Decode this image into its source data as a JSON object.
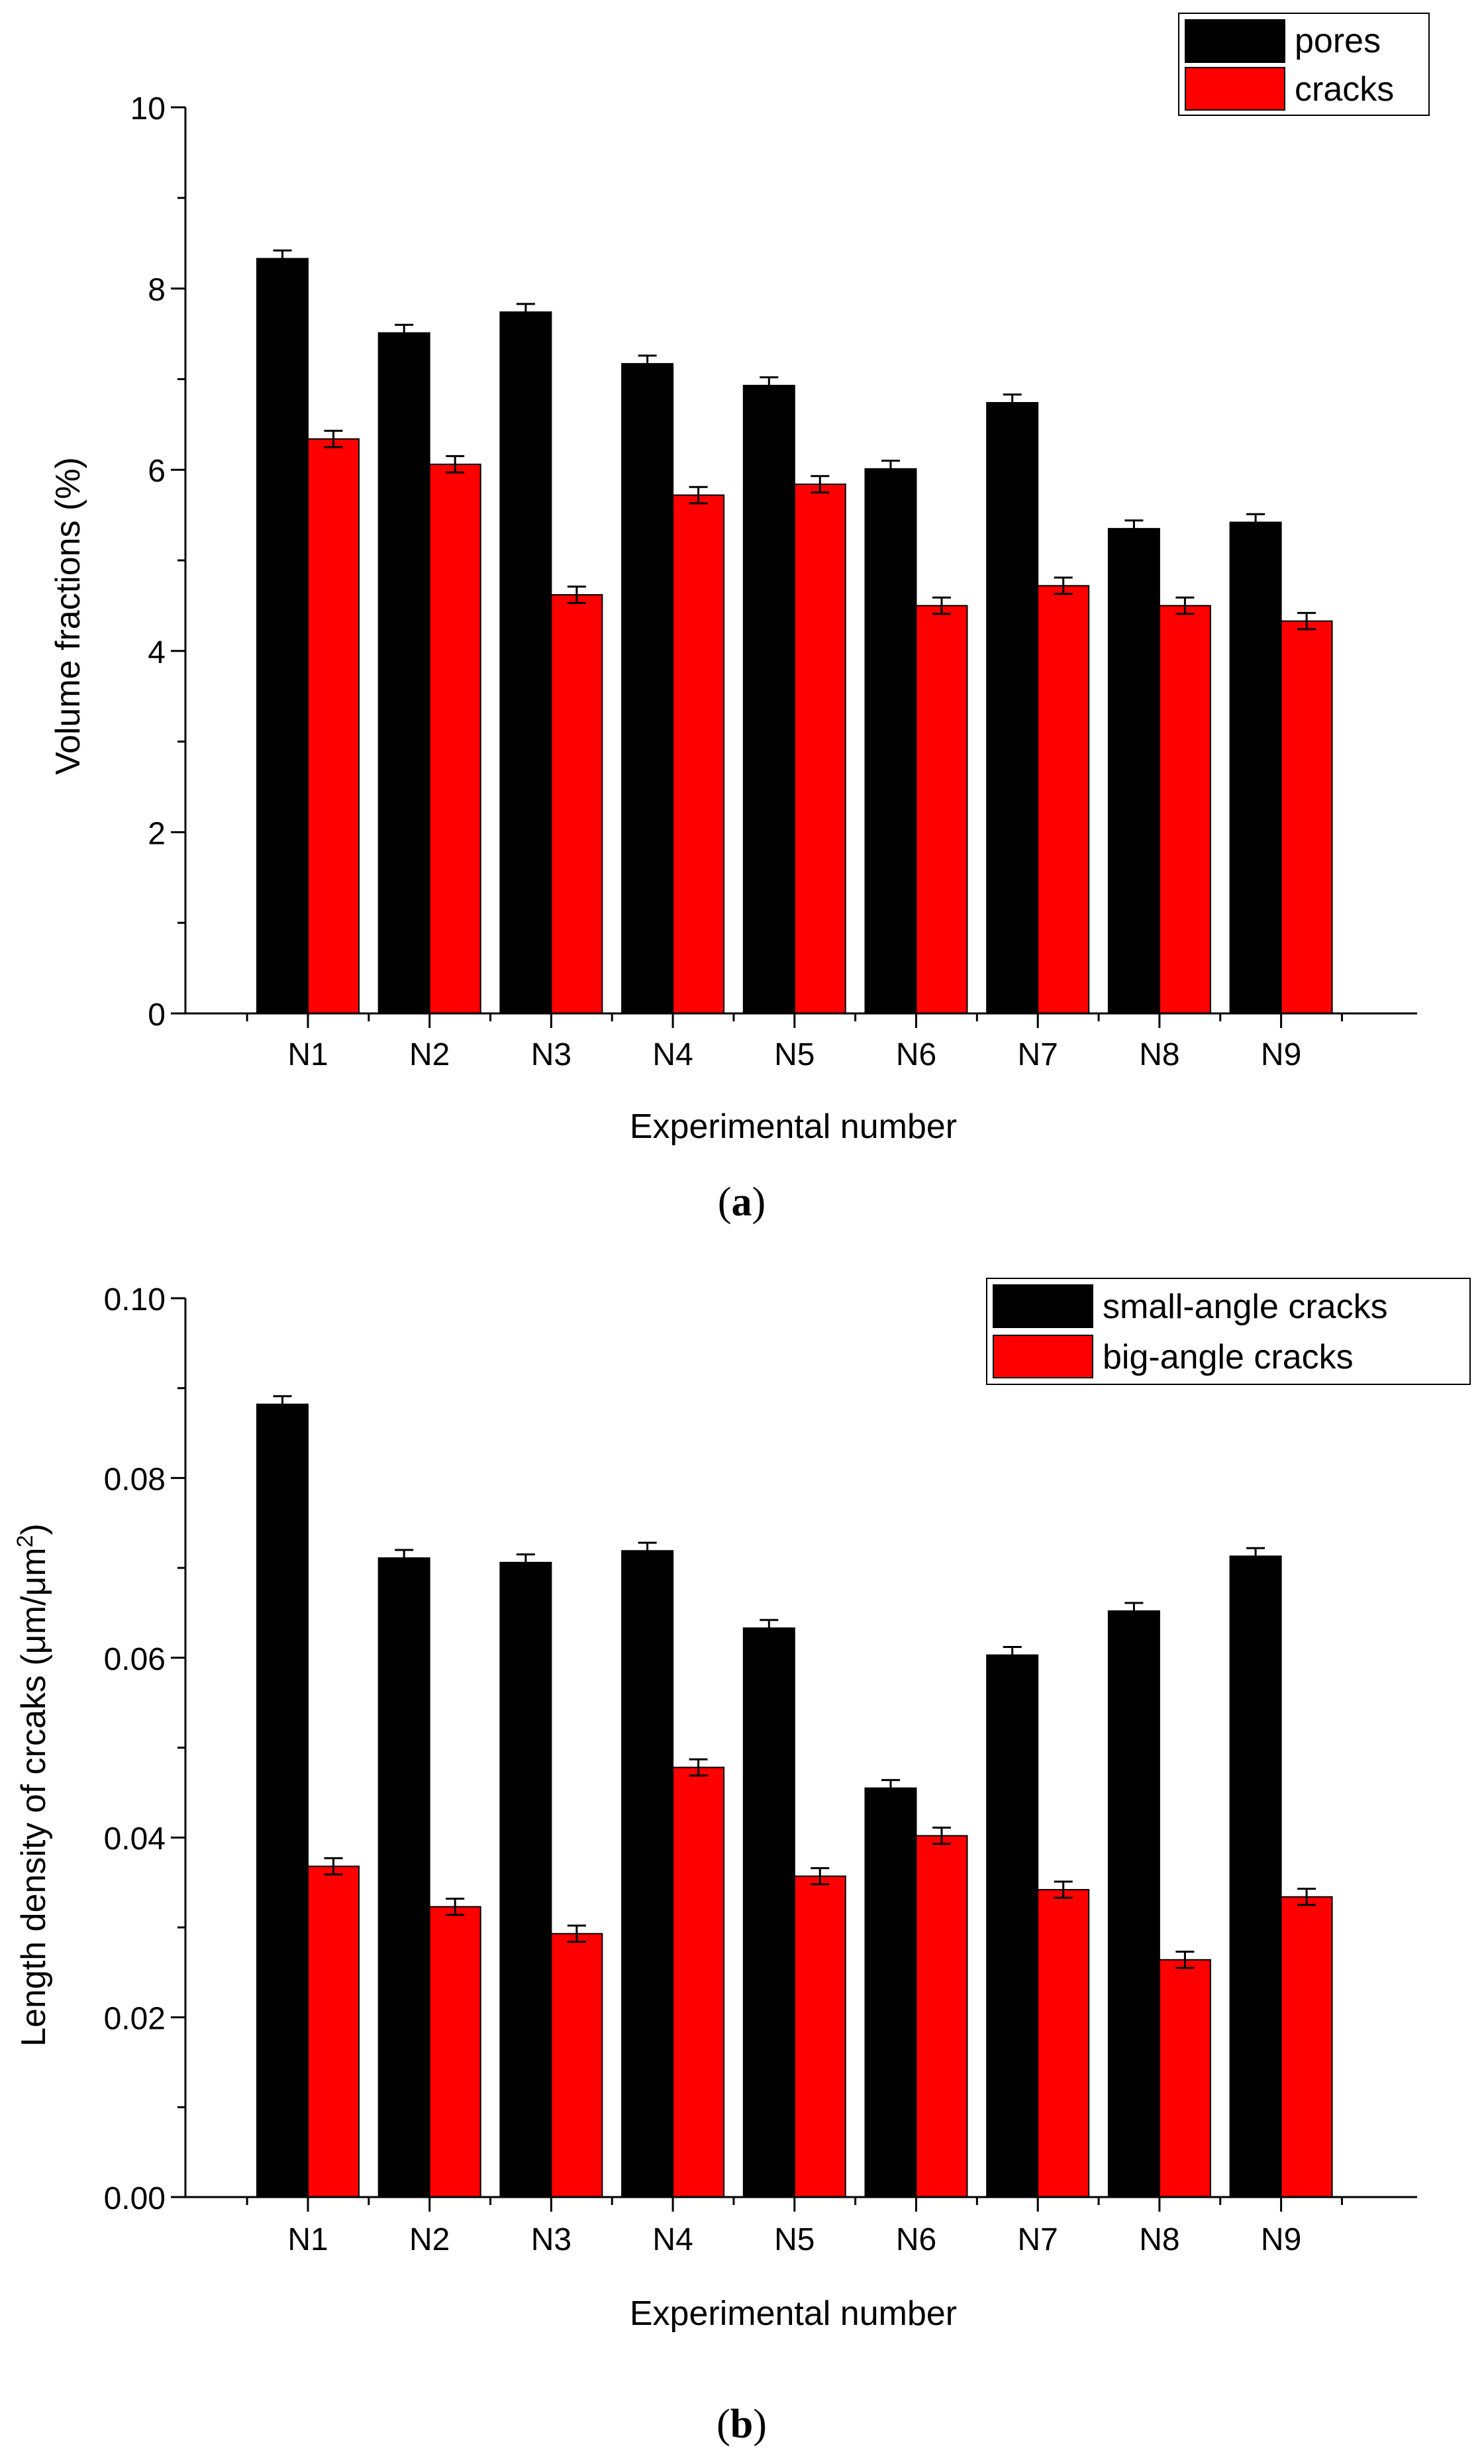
{
  "figure": {
    "panels": [
      {
        "label_open": "(",
        "label_letter": "a",
        "label_close": ")"
      },
      {
        "label_open": "(",
        "label_letter": "b",
        "label_close": ")"
      }
    ]
  },
  "chart_data": [
    {
      "type": "bar",
      "title": "",
      "xlabel": "Experimental number",
      "ylabel": "Volume fractions (%)",
      "ylim": [
        0,
        10
      ],
      "yticks": [
        0,
        2,
        4,
        6,
        8,
        10
      ],
      "ytick_labels": [
        "0",
        "2",
        "4",
        "6",
        "8",
        "10"
      ],
      "categories": [
        "N1",
        "N2",
        "N3",
        "N4",
        "N5",
        "N6",
        "N7",
        "N8",
        "N9"
      ],
      "series": [
        {
          "name": "pores",
          "color": "#000000",
          "values": [
            8.33,
            7.51,
            7.74,
            7.17,
            6.93,
            6.01,
            6.74,
            5.35,
            5.42
          ],
          "error": [
            0.09,
            0.09,
            0.09,
            0.09,
            0.09,
            0.09,
            0.09,
            0.09,
            0.09
          ]
        },
        {
          "name": "cracks",
          "color": "#ff0000",
          "values": [
            6.34,
            6.06,
            4.62,
            5.72,
            5.84,
            4.5,
            4.72,
            4.5,
            4.33
          ],
          "error": [
            0.09,
            0.09,
            0.09,
            0.09,
            0.09,
            0.09,
            0.09,
            0.09,
            0.09
          ]
        }
      ],
      "legend_position": "top-right",
      "grid": false
    },
    {
      "type": "bar",
      "title": "",
      "xlabel": "Experimental number",
      "ylabel_main": "Length density of crcaks (μm/μm",
      "ylabel_sup": "2",
      "ylabel_end": ")",
      "ylim": [
        0,
        0.1
      ],
      "yticks": [
        0,
        0.02,
        0.04,
        0.06,
        0.08,
        0.1
      ],
      "ytick_labels": [
        "0.00",
        "0.02",
        "0.04",
        "0.06",
        "0.08",
        "0.10"
      ],
      "categories": [
        "N1",
        "N2",
        "N3",
        "N4",
        "N5",
        "N6",
        "N7",
        "N8",
        "N9"
      ],
      "series": [
        {
          "name": "small-angle cracks",
          "color": "#000000",
          "values": [
            0.0882,
            0.0711,
            0.0706,
            0.0719,
            0.0633,
            0.0455,
            0.0603,
            0.0652,
            0.0713
          ],
          "error": [
            0.0009,
            0.0009,
            0.0009,
            0.0009,
            0.0009,
            0.0009,
            0.0009,
            0.0009,
            0.0009
          ]
        },
        {
          "name": "big-angle cracks",
          "color": "#ff0000",
          "values": [
            0.0368,
            0.0323,
            0.0293,
            0.0478,
            0.0357,
            0.0402,
            0.0342,
            0.0264,
            0.0334
          ],
          "error": [
            0.0009,
            0.0009,
            0.0009,
            0.0009,
            0.0009,
            0.0009,
            0.0009,
            0.0009,
            0.0009
          ]
        }
      ],
      "legend_position": "top-right",
      "grid": false
    }
  ]
}
